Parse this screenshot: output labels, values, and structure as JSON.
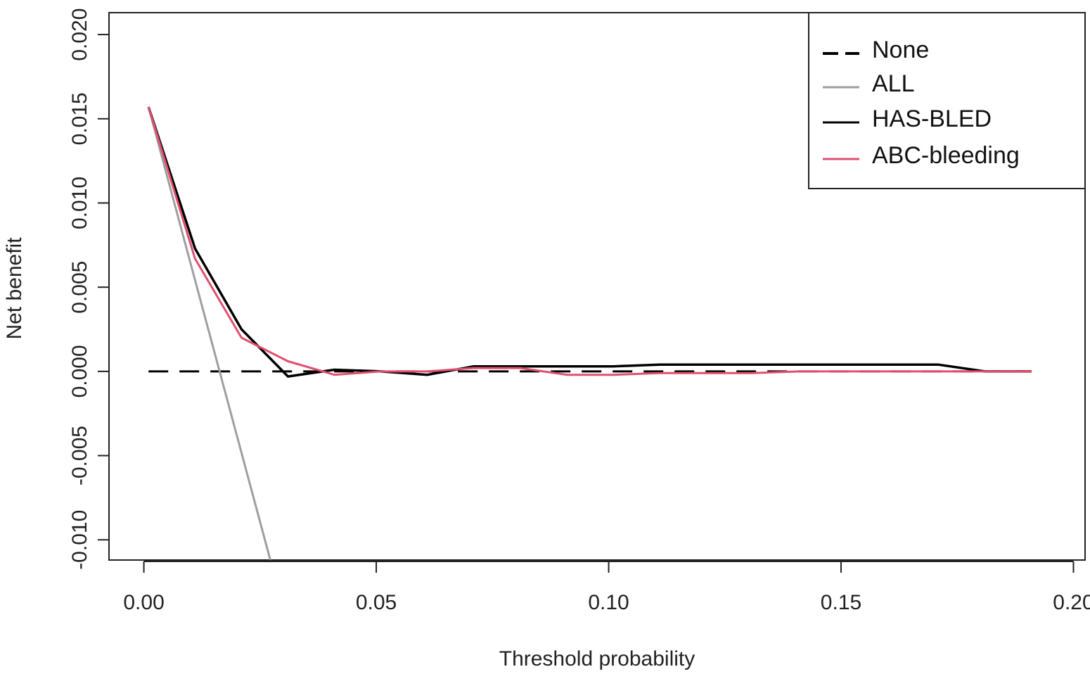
{
  "chart_data": {
    "type": "line",
    "title": "",
    "xlabel": "Threshold probability",
    "ylabel": "Net benefit",
    "xlim": [
      -0.0075,
      0.2025
    ],
    "ylim": [
      -0.0112,
      0.0213
    ],
    "xticks": [
      0.0,
      0.05,
      0.1,
      0.15,
      0.2
    ],
    "xtick_labels": [
      "0.00",
      "0.05",
      "0.10",
      "0.15",
      "0.20"
    ],
    "yticks": [
      -0.01,
      -0.005,
      0.0,
      0.005,
      0.01,
      0.015,
      0.02
    ],
    "ytick_labels": [
      "-0.010",
      "-0.005",
      "0.000",
      "0.005",
      "0.010",
      "0.015",
      "0.020"
    ],
    "grid": false,
    "legend_position": "top-right",
    "series": [
      {
        "name": "None",
        "style": "dashed",
        "color": "#000000",
        "x": [
          0.001,
          0.191
        ],
        "y": [
          0.0,
          0.0
        ]
      },
      {
        "name": "ALL",
        "style": "solid",
        "color": "#9e9e9e",
        "x": [
          0.001,
          0.0272
        ],
        "y": [
          0.0157,
          -0.0112
        ]
      },
      {
        "name": "HAS-BLED",
        "style": "solid",
        "color": "#000000",
        "x": [
          0.001,
          0.011,
          0.021,
          0.031,
          0.041,
          0.051,
          0.061,
          0.071,
          0.081,
          0.091,
          0.101,
          0.111,
          0.121,
          0.131,
          0.141,
          0.151,
          0.161,
          0.171,
          0.181,
          0.191
        ],
        "y": [
          0.0157,
          0.0073,
          0.0025,
          -0.0003,
          0.0001,
          0.0,
          -0.0002,
          0.0003,
          0.0003,
          0.0003,
          0.0003,
          0.0004,
          0.0004,
          0.0004,
          0.0004,
          0.0004,
          0.0004,
          0.0004,
          0.0,
          0.0
        ]
      },
      {
        "name": "ABC-bleeding",
        "style": "solid",
        "color": "#e0506e",
        "x": [
          0.001,
          0.011,
          0.021,
          0.031,
          0.041,
          0.051,
          0.061,
          0.071,
          0.081,
          0.091,
          0.101,
          0.111,
          0.121,
          0.131,
          0.141,
          0.151,
          0.161,
          0.171,
          0.181,
          0.191
        ],
        "y": [
          0.0157,
          0.0067,
          0.002,
          0.0006,
          -0.0002,
          0.0,
          0.0,
          0.0002,
          0.0002,
          -0.0002,
          -0.0002,
          -0.0001,
          -0.0001,
          -0.0001,
          0.0,
          0.0,
          0.0,
          0.0,
          0.0,
          0.0
        ]
      }
    ]
  }
}
